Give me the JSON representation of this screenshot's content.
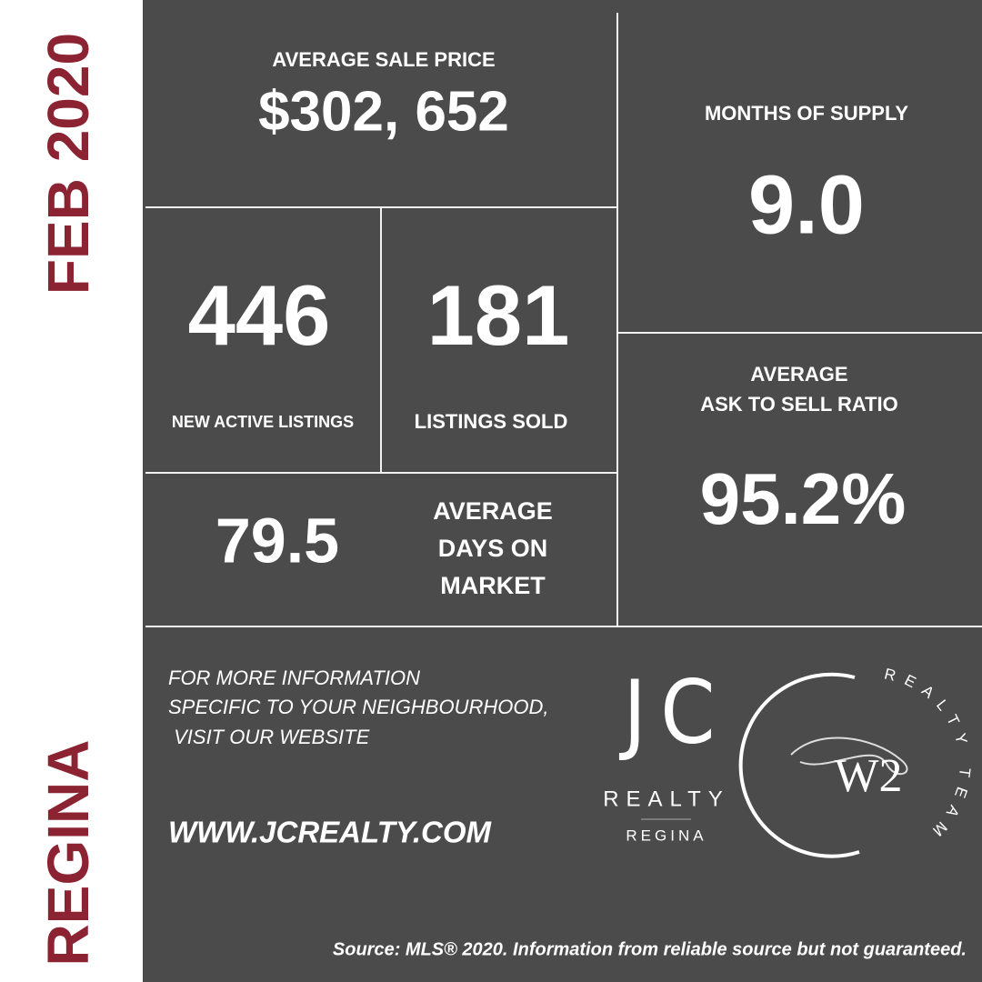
{
  "side": {
    "date": "FEB 2020",
    "city": "REGINA"
  },
  "stats": {
    "average_sale_price": {
      "label": "AVERAGE SALE PRICE",
      "value": "$302, 652"
    },
    "months_of_supply": {
      "label": "MONTHS OF SUPPLY",
      "value": "9.0"
    },
    "new_active_listings": {
      "label": "NEW ACTIVE LISTINGS",
      "value": "446"
    },
    "listings_sold": {
      "label": "LISTINGS SOLD",
      "value": "181"
    },
    "ask_to_sell_ratio": {
      "label_lines": [
        "AVERAGE",
        "ASK TO SELL RATIO"
      ],
      "value": "95.2%"
    },
    "days_on_market": {
      "label_lines": [
        "AVERAGE",
        "DAYS ON",
        "MARKET"
      ],
      "value": "79.5"
    }
  },
  "footer": {
    "info_lines": [
      "FOR MORE INFORMATION",
      "SPECIFIC TO YOUR NEIGHBOURHOOD,",
      " VISIT OUR WEBSITE"
    ],
    "website": "WWW.JCREALTY.COM",
    "source": "Source: MLS® 2020. Information from reliable source but not guaranteed."
  },
  "logos": {
    "jc": {
      "letters": "J C",
      "name": "REALTY",
      "city": "REGINA"
    },
    "w2": {
      "mark": "W2",
      "arc_text": "REALTY TEAM"
    }
  }
}
